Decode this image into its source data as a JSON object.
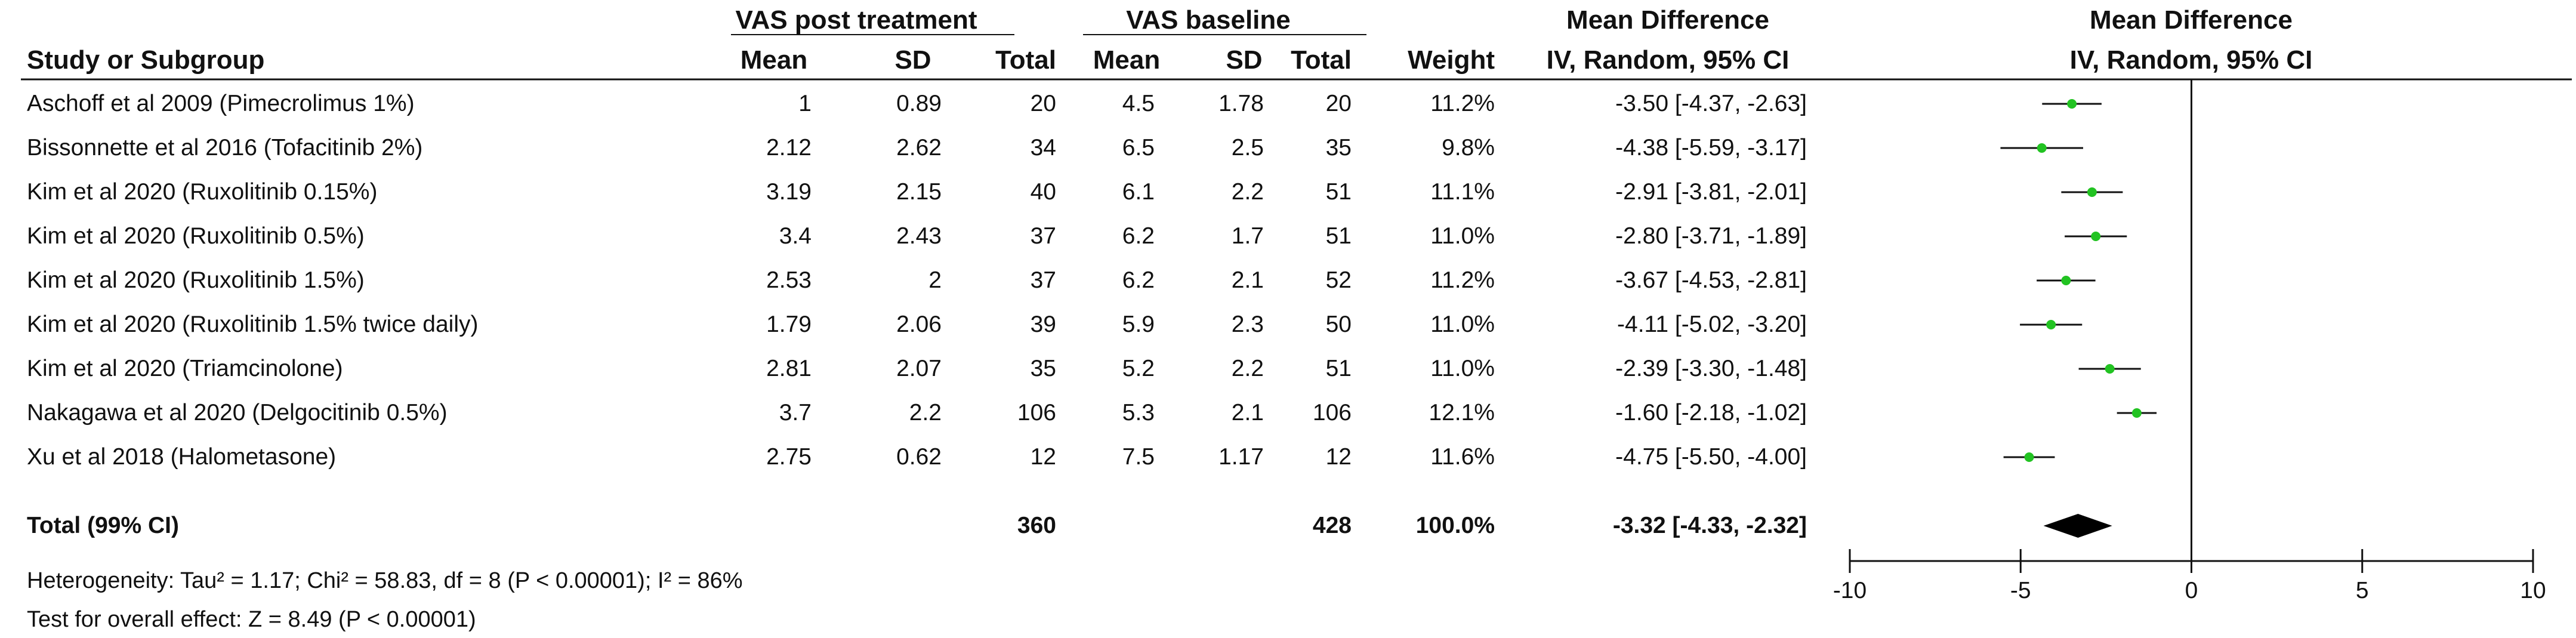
{
  "header": {
    "group_post": "VAS post treatment",
    "group_baseline": "VAS baseline",
    "group_md": "Mean Difference",
    "plot_title": "Mean Difference",
    "col_study": "Study or Subgroup",
    "col_mean1": "Mean",
    "col_sd1": "SD",
    "col_total1": "Total",
    "col_mean2": "Mean",
    "col_sd2": "SD",
    "col_total2": "Total",
    "col_weight": "Weight",
    "col_method": "IV, Random, 95% CI",
    "plot_method": "IV, Random, 95% CI"
  },
  "studies": [
    {
      "study": "Aschoff et al 2009 (Pimecrolimus 1%)",
      "mean1": "1",
      "sd1": "0.89",
      "n1": "20",
      "mean2": "4.5",
      "sd2": "1.78",
      "n2": "20",
      "weight": "11.2%",
      "ci": "-3.50 [-4.37, -2.63]"
    },
    {
      "study": "Bissonnette et al 2016 (Tofacitinib 2%)",
      "mean1": "2.12",
      "sd1": "2.62",
      "n1": "34",
      "mean2": "6.5",
      "sd2": "2.5",
      "n2": "35",
      "weight": "9.8%",
      "ci": "-4.38 [-5.59, -3.17]"
    },
    {
      "study": "Kim et al 2020 (Ruxolitinib 0.15%)",
      "mean1": "3.19",
      "sd1": "2.15",
      "n1": "40",
      "mean2": "6.1",
      "sd2": "2.2",
      "n2": "51",
      "weight": "11.1%",
      "ci": "-2.91 [-3.81, -2.01]"
    },
    {
      "study": "Kim et al 2020 (Ruxolitinib 0.5%)",
      "mean1": "3.4",
      "sd1": "2.43",
      "n1": "37",
      "mean2": "6.2",
      "sd2": "1.7",
      "n2": "51",
      "weight": "11.0%",
      "ci": "-2.80 [-3.71, -1.89]"
    },
    {
      "study": "Kim et al 2020 (Ruxolitinib 1.5%)",
      "mean1": "2.53",
      "sd1": "2",
      "n1": "37",
      "mean2": "6.2",
      "sd2": "2.1",
      "n2": "52",
      "weight": "11.2%",
      "ci": "-3.67 [-4.53, -2.81]"
    },
    {
      "study": "Kim et al 2020 (Ruxolitinib 1.5% twice daily)",
      "mean1": "1.79",
      "sd1": "2.06",
      "n1": "39",
      "mean2": "5.9",
      "sd2": "2.3",
      "n2": "50",
      "weight": "11.0%",
      "ci": "-4.11 [-5.02, -3.20]"
    },
    {
      "study": "Kim et al 2020 (Triamcinolone)",
      "mean1": "2.81",
      "sd1": "2.07",
      "n1": "35",
      "mean2": "5.2",
      "sd2": "2.2",
      "n2": "51",
      "weight": "11.0%",
      "ci": "-2.39 [-3.30, -1.48]"
    },
    {
      "study": "Nakagawa et al 2020 (Delgocitinib 0.5%)",
      "mean1": "3.7",
      "sd1": "2.2",
      "n1": "106",
      "mean2": "5.3",
      "sd2": "2.1",
      "n2": "106",
      "weight": "12.1%",
      "ci": "-1.60 [-2.18, -1.02]"
    },
    {
      "study": "Xu et al 2018 (Halometasone)",
      "mean1": "2.75",
      "sd1": "0.62",
      "n1": "12",
      "mean2": "7.5",
      "sd2": "1.17",
      "n2": "12",
      "weight": "11.6%",
      "ci": "-4.75 [-5.50, -4.00]"
    }
  ],
  "total": {
    "label": "Total (99% CI)",
    "n1": "360",
    "n2": "428",
    "weight": "100.0%",
    "ci": "-3.32 [-4.33, -2.32]"
  },
  "footer": {
    "heterogeneity": "Heterogeneity: Tau² = 1.17; Chi² = 58.83, df = 8 (P < 0.00001); I² = 86%",
    "overall": "Test for overall effect: Z = 8.49 (P < 0.00001)"
  },
  "colors": {
    "point": "#22c322",
    "line": "#111111",
    "diamond": "#000000"
  },
  "chart_data": {
    "type": "forest",
    "title": "Mean Difference",
    "subtitle": "IV, Random, 95% CI",
    "xlim": [
      -10,
      10
    ],
    "xticks": [
      -10,
      -5,
      0,
      5,
      10
    ],
    "xtick_labels": [
      "-10",
      "-5",
      "0",
      "5",
      "10"
    ],
    "null_line": 0,
    "categories": [
      "Aschoff et al 2009 (Pimecrolimus 1%)",
      "Bissonnette et al 2016 (Tofacitinib 2%)",
      "Kim et al 2020 (Ruxolitinib 0.15%)",
      "Kim et al 2020 (Ruxolitinib 0.5%)",
      "Kim et al 2020 (Ruxolitinib 1.5%)",
      "Kim et al 2020 (Ruxolitinib 1.5% twice daily)",
      "Kim et al 2020 (Triamcinolone)",
      "Nakagawa et al 2020 (Delgocitinib 0.5%)",
      "Xu et al 2018 (Halometasone)"
    ],
    "estimates": [
      -3.5,
      -4.38,
      -2.91,
      -2.8,
      -3.67,
      -4.11,
      -2.39,
      -1.6,
      -4.75
    ],
    "ci_low": [
      -4.37,
      -5.59,
      -3.81,
      -3.71,
      -4.53,
      -5.02,
      -3.3,
      -2.18,
      -5.5
    ],
    "ci_high": [
      -2.63,
      -3.17,
      -2.01,
      -1.89,
      -2.81,
      -3.2,
      -1.48,
      -1.02,
      -4.0
    ],
    "pooled": {
      "estimate": -3.32,
      "ci_low": -4.33,
      "ci_high": -2.32
    }
  }
}
